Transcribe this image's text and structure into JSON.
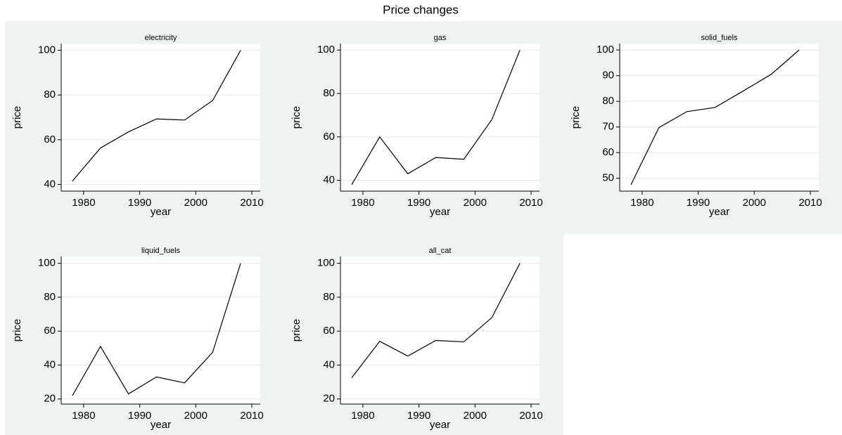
{
  "title": "Price changes",
  "chart_data": [
    {
      "type": "line",
      "title": "electricity",
      "x_label": "year",
      "y_label": "price",
      "x": [
        1978,
        1983,
        1988,
        1993,
        1998,
        2003,
        2008
      ],
      "series": [
        {
          "color": "#000000",
          "values": [
            41.5,
            56.3,
            63.5,
            69.3,
            68.8,
            77.5,
            100
          ]
        }
      ],
      "xlim": [
        1976,
        2011.5
      ],
      "xticks": [
        1980,
        1990,
        2000,
        2010
      ],
      "ylim": [
        37,
        103
      ],
      "yticks": [
        40,
        60,
        80,
        100
      ],
      "grid": true
    },
    {
      "type": "line",
      "title": "gas",
      "x_label": "year",
      "y_label": "price",
      "x": [
        1978,
        1983,
        1988,
        1993,
        1998,
        2003,
        2008
      ],
      "series": [
        {
          "color": "#000000",
          "values": [
            38,
            60,
            43,
            50.5,
            49.7,
            68,
            100
          ]
        }
      ],
      "xlim": [
        1976,
        2011.5
      ],
      "xticks": [
        1980,
        1990,
        2000,
        2010
      ],
      "ylim": [
        35,
        103
      ],
      "yticks": [
        40,
        60,
        80,
        100
      ],
      "grid": true
    },
    {
      "type": "line",
      "title": "solid_fuels",
      "x_label": "year",
      "y_label": "price",
      "x": [
        1978,
        1983,
        1988,
        1993,
        1998,
        2003,
        2008
      ],
      "series": [
        {
          "color": "#000000",
          "values": [
            47.5,
            69.8,
            76,
            77.6,
            84,
            90.5,
            100
          ]
        }
      ],
      "xlim": [
        1976,
        2011.5
      ],
      "xticks": [
        1980,
        1990,
        2000,
        2010
      ],
      "ylim": [
        45,
        102.5
      ],
      "yticks": [
        50,
        60,
        70,
        80,
        90,
        100
      ],
      "grid": true
    },
    {
      "type": "line",
      "title": "liquid_fuels",
      "x_label": "year",
      "y_label": "price",
      "x": [
        1978,
        1983,
        1988,
        1993,
        1998,
        2003,
        2008
      ],
      "series": [
        {
          "color": "#000000",
          "values": [
            22,
            51,
            23,
            33,
            29.5,
            47.5,
            100
          ]
        }
      ],
      "xlim": [
        1976,
        2011.5
      ],
      "xticks": [
        1980,
        1990,
        2000,
        2010
      ],
      "ylim": [
        17,
        104
      ],
      "yticks": [
        20,
        40,
        60,
        80,
        100
      ],
      "grid": true
    },
    {
      "type": "line",
      "title": "all_cat",
      "x_label": "year",
      "y_label": "price",
      "x": [
        1978,
        1983,
        1988,
        1993,
        1998,
        2003,
        2008
      ],
      "series": [
        {
          "color": "#000000",
          "values": [
            32.5,
            54,
            45.3,
            54.5,
            53.7,
            68,
            100
          ]
        }
      ],
      "xlim": [
        1976,
        2011.5
      ],
      "xticks": [
        1980,
        1990,
        2000,
        2010
      ],
      "ylim": [
        17,
        104
      ],
      "yticks": [
        20,
        40,
        60,
        80,
        100
      ],
      "grid": true
    }
  ]
}
